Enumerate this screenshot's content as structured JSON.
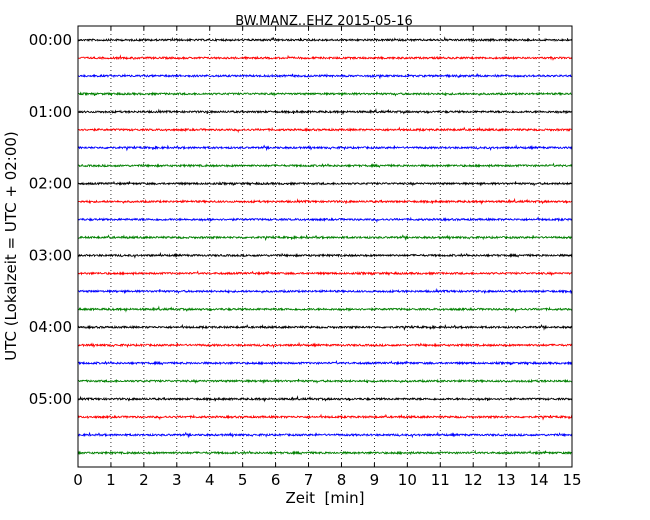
{
  "chart_data": {
    "type": "line",
    "title": "BW.MANZ..EHZ 2015-05-16",
    "xlabel": "Zeit  [min]",
    "ylabel": "UTC (Lokalzeit = UTC + 02:00)",
    "xlim": [
      0,
      15
    ],
    "x_ticks": [
      "0",
      "1",
      "2",
      "3",
      "4",
      "5",
      "6",
      "7",
      "8",
      "9",
      "10",
      "11",
      "12",
      "13",
      "14",
      "15"
    ],
    "y_ticks": [
      "00:00",
      "01:00",
      "02:00",
      "03:00",
      "04:00",
      "05:00"
    ],
    "grid": "vertical dotted",
    "trace_colors": [
      "#000000",
      "#ff0000",
      "#0000ff",
      "#008000"
    ],
    "series": [
      {
        "start": "00:00"
      },
      {
        "start": "00:15"
      },
      {
        "start": "00:30"
      },
      {
        "start": "00:45"
      },
      {
        "start": "01:00"
      },
      {
        "start": "01:15"
      },
      {
        "start": "01:30"
      },
      {
        "start": "01:45"
      },
      {
        "start": "02:00"
      },
      {
        "start": "02:15"
      },
      {
        "start": "02:30"
      },
      {
        "start": "02:45"
      },
      {
        "start": "03:00"
      },
      {
        "start": "03:15"
      },
      {
        "start": "03:30"
      },
      {
        "start": "03:45"
      },
      {
        "start": "04:00"
      },
      {
        "start": "04:15"
      },
      {
        "start": "04:30"
      },
      {
        "start": "04:45"
      },
      {
        "start": "05:00"
      },
      {
        "start": "05:15"
      },
      {
        "start": "05:30"
      },
      {
        "start": "05:45"
      }
    ]
  }
}
